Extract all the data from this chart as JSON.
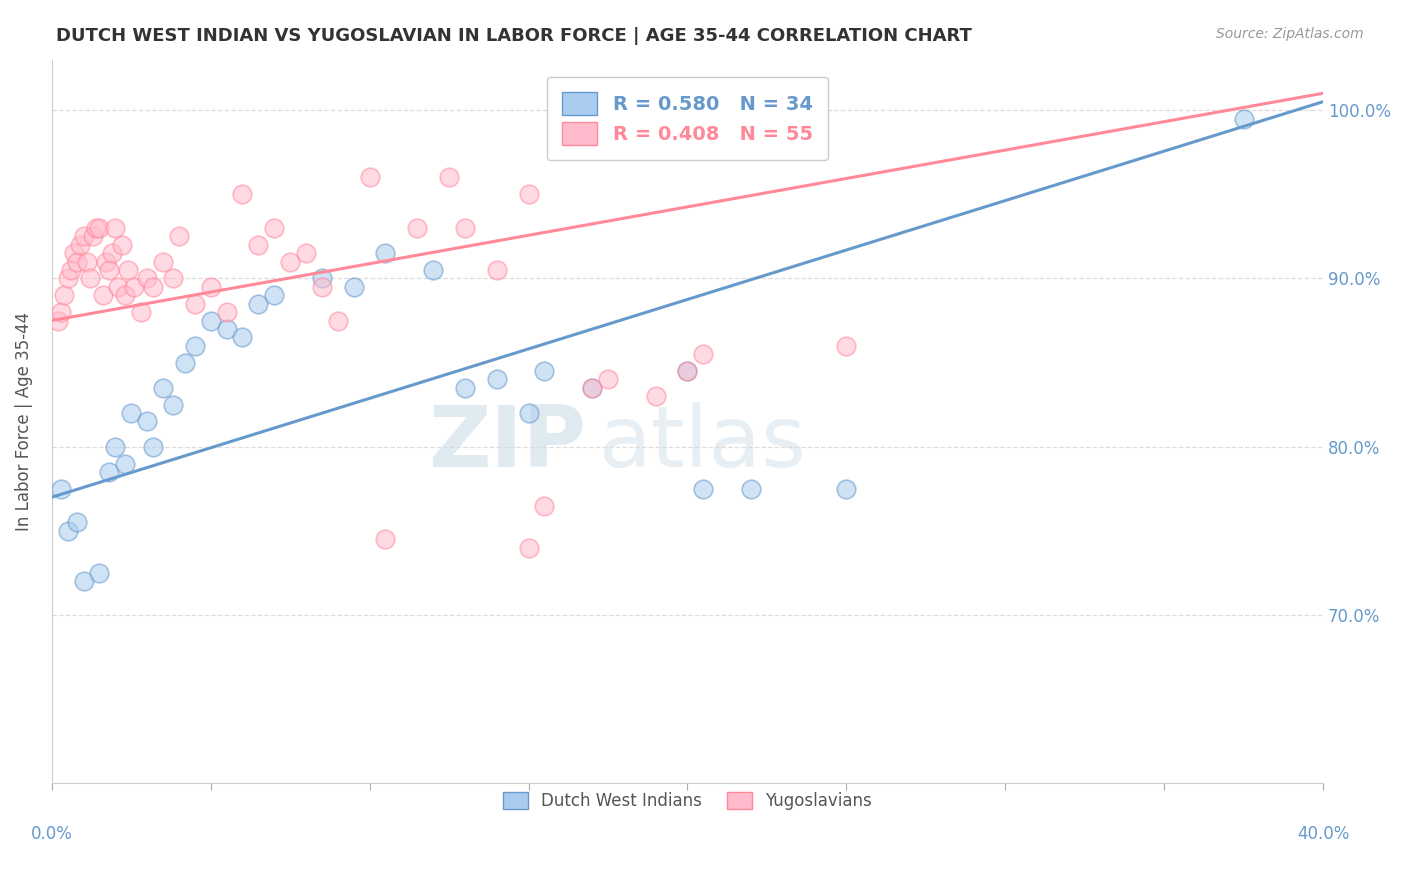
{
  "title": "DUTCH WEST INDIAN VS YUGOSLAVIAN IN LABOR FORCE | AGE 35-44 CORRELATION CHART",
  "source": "Source: ZipAtlas.com",
  "ylabel": "In Labor Force | Age 35-44",
  "legend_label1": "Dutch West Indians",
  "legend_label2": "Yugoslavians",
  "r1": 0.58,
  "n1": 34,
  "r2": 0.408,
  "n2": 55,
  "color_blue": "#6699CC",
  "color_pink": "#FF8899",
  "watermark_zip": "ZIP",
  "watermark_atlas": "atlas",
  "blue_points": [
    [
      0.3,
      77.5
    ],
    [
      0.5,
      75.0
    ],
    [
      0.8,
      75.5
    ],
    [
      1.0,
      72.0
    ],
    [
      1.5,
      72.5
    ],
    [
      1.8,
      78.5
    ],
    [
      2.0,
      80.0
    ],
    [
      2.3,
      79.0
    ],
    [
      2.5,
      82.0
    ],
    [
      3.0,
      81.5
    ],
    [
      3.2,
      80.0
    ],
    [
      3.5,
      83.5
    ],
    [
      3.8,
      82.5
    ],
    [
      4.2,
      85.0
    ],
    [
      4.5,
      86.0
    ],
    [
      5.0,
      87.5
    ],
    [
      5.5,
      87.0
    ],
    [
      6.0,
      86.5
    ],
    [
      6.5,
      88.5
    ],
    [
      7.0,
      89.0
    ],
    [
      8.5,
      90.0
    ],
    [
      9.5,
      89.5
    ],
    [
      10.5,
      91.5
    ],
    [
      12.0,
      90.5
    ],
    [
      13.0,
      83.5
    ],
    [
      14.0,
      84.0
    ],
    [
      15.0,
      82.0
    ],
    [
      15.5,
      84.5
    ],
    [
      17.0,
      83.5
    ],
    [
      20.0,
      84.5
    ],
    [
      20.5,
      77.5
    ],
    [
      22.0,
      77.5
    ],
    [
      25.0,
      77.5
    ],
    [
      37.5,
      99.5
    ]
  ],
  "pink_points": [
    [
      0.2,
      87.5
    ],
    [
      0.3,
      88.0
    ],
    [
      0.4,
      89.0
    ],
    [
      0.5,
      90.0
    ],
    [
      0.6,
      90.5
    ],
    [
      0.7,
      91.5
    ],
    [
      0.8,
      91.0
    ],
    [
      0.9,
      92.0
    ],
    [
      1.0,
      92.5
    ],
    [
      1.1,
      91.0
    ],
    [
      1.2,
      90.0
    ],
    [
      1.3,
      92.5
    ],
    [
      1.4,
      93.0
    ],
    [
      1.5,
      93.0
    ],
    [
      1.6,
      89.0
    ],
    [
      1.7,
      91.0
    ],
    [
      1.8,
      90.5
    ],
    [
      1.9,
      91.5
    ],
    [
      2.0,
      93.0
    ],
    [
      2.1,
      89.5
    ],
    [
      2.2,
      92.0
    ],
    [
      2.3,
      89.0
    ],
    [
      2.4,
      90.5
    ],
    [
      2.6,
      89.5
    ],
    [
      2.8,
      88.0
    ],
    [
      3.0,
      90.0
    ],
    [
      3.2,
      89.5
    ],
    [
      3.5,
      91.0
    ],
    [
      3.8,
      90.0
    ],
    [
      4.0,
      92.5
    ],
    [
      4.5,
      88.5
    ],
    [
      5.0,
      89.5
    ],
    [
      5.5,
      88.0
    ],
    [
      6.0,
      95.0
    ],
    [
      6.5,
      92.0
    ],
    [
      7.0,
      93.0
    ],
    [
      7.5,
      91.0
    ],
    [
      8.0,
      91.5
    ],
    [
      8.5,
      89.5
    ],
    [
      9.0,
      87.5
    ],
    [
      10.0,
      96.0
    ],
    [
      11.5,
      93.0
    ],
    [
      12.5,
      96.0
    ],
    [
      13.0,
      93.0
    ],
    [
      14.0,
      90.5
    ],
    [
      15.0,
      95.0
    ],
    [
      17.0,
      83.5
    ],
    [
      17.5,
      84.0
    ],
    [
      19.0,
      83.0
    ],
    [
      20.0,
      84.5
    ],
    [
      20.5,
      85.5
    ],
    [
      10.5,
      74.5
    ],
    [
      15.0,
      74.0
    ],
    [
      15.5,
      76.5
    ],
    [
      25.0,
      86.0
    ]
  ],
  "xmin": 0.0,
  "xmax": 40.0,
  "ymin": 60.0,
  "ymax": 103.0,
  "ytick_positions": [
    70.0,
    80.0,
    90.0,
    100.0
  ],
  "ytick_labels": [
    "70.0%",
    "80.0%",
    "90.0%",
    "100.0%"
  ],
  "grid_color": "#DDDDDD",
  "blue_line_x0": 0.0,
  "blue_line_y0": 77.0,
  "blue_line_x1": 40.0,
  "blue_line_y1": 100.5,
  "pink_line_x0": 0.0,
  "pink_line_y0": 87.5,
  "pink_line_x1": 40.0,
  "pink_line_y1": 101.0
}
